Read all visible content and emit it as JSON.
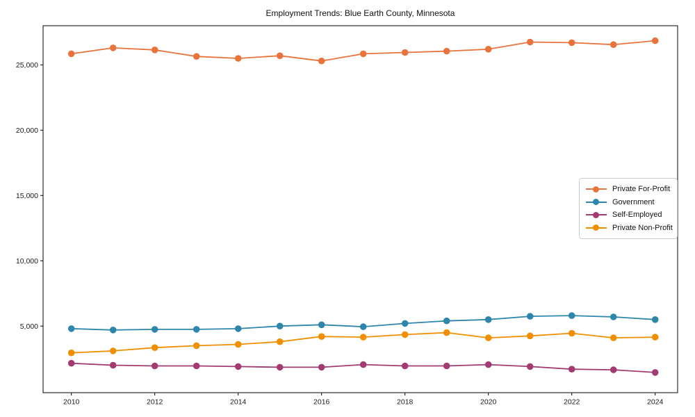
{
  "chart_data": {
    "type": "line",
    "title": "Employment Trends: Blue Earth County, Minnesota",
    "xlabel": "",
    "ylabel": "",
    "grid": false,
    "legend_position": "center-right",
    "x": [
      2010,
      2011,
      2012,
      2013,
      2014,
      2015,
      2016,
      2017,
      2018,
      2019,
      2020,
      2021,
      2022,
      2023,
      2024
    ],
    "xticks": [
      2010,
      2012,
      2014,
      2016,
      2018,
      2020,
      2022,
      2024
    ],
    "yticks": [
      5000,
      10000,
      15000,
      20000,
      25000
    ],
    "ytick_labels": [
      "5,000",
      "10,000",
      "15,000",
      "20,000",
      "25,000"
    ],
    "ylim": [
      -100,
      28000
    ],
    "series": [
      {
        "name": "Private For-Profit",
        "color": "#E8743B",
        "values": [
          25850,
          26300,
          26150,
          25650,
          25500,
          25700,
          25300,
          25850,
          25950,
          26050,
          26200,
          26750,
          26700,
          26550,
          26850
        ]
      },
      {
        "name": "Government",
        "color": "#2E86AB",
        "values": [
          4800,
          4700,
          4750,
          4750,
          4800,
          5000,
          5100,
          4950,
          5200,
          5400,
          5500,
          5750,
          5800,
          5700,
          5500
        ]
      },
      {
        "name": "Self-Employed",
        "color": "#A23B72",
        "values": [
          2150,
          2000,
          1950,
          1950,
          1900,
          1850,
          1850,
          2050,
          1950,
          1950,
          2050,
          1900,
          1700,
          1650,
          1450
        ]
      },
      {
        "name": "Private Non-Profit",
        "color": "#F18F01",
        "values": [
          2950,
          3100,
          3350,
          3500,
          3600,
          3800,
          4200,
          4150,
          4350,
          4500,
          4100,
          4250,
          4450,
          4100,
          4150
        ]
      }
    ],
    "axis_color": "#000000",
    "tick_label_color": "#1a1a1a"
  }
}
